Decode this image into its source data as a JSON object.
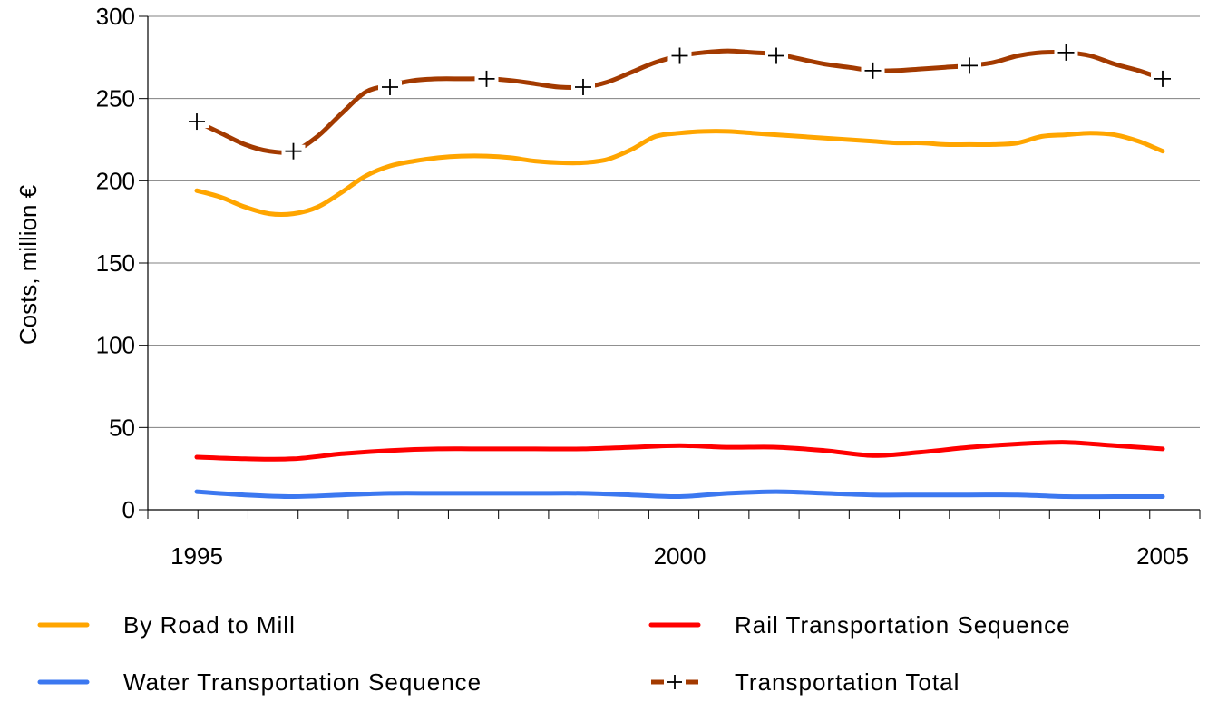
{
  "chart_data": {
    "type": "line",
    "ylabel": "Costs, million €",
    "xlabel": "",
    "ylim": [
      0,
      300
    ],
    "xlim": [
      1995,
      2005
    ],
    "yticks": [
      0,
      50,
      100,
      150,
      200,
      250,
      300
    ],
    "xtick_labels": [
      "1995",
      "2000",
      "2005"
    ],
    "grid": "horizontal",
    "legend_position": "bottom",
    "series": [
      {
        "name": "By Road to Mill",
        "color": "#ffa500",
        "marker": "none",
        "x": [
          1995,
          1995.25,
          1995.5,
          1995.75,
          1996,
          1996.25,
          1996.5,
          1996.75,
          1997,
          1997.25,
          1997.5,
          1997.75,
          1998,
          1998.25,
          1998.5,
          1998.75,
          1999,
          1999.25,
          1999.5,
          1999.75,
          2000,
          2000.25,
          2000.5,
          2000.75,
          2001,
          2001.25,
          2001.5,
          2001.75,
          2002,
          2002.25,
          2002.5,
          2002.75,
          2003,
          2003.25,
          2003.5,
          2003.75,
          2004,
          2004.25,
          2004.5,
          2004.75,
          2005
        ],
        "values": [
          194,
          190,
          184,
          180,
          180,
          184,
          193,
          203,
          209,
          212,
          214,
          215,
          215,
          214,
          212,
          211,
          211,
          213,
          219,
          227,
          229,
          230,
          230,
          229,
          228,
          227,
          226,
          225,
          224,
          223,
          223,
          222,
          222,
          222,
          223,
          227,
          228,
          229,
          228,
          224,
          218
        ]
      },
      {
        "name": "Rail Transportation Sequence",
        "color": "#ff0000",
        "marker": "none",
        "x": [
          1995,
          1995.5,
          1996,
          1996.5,
          1997,
          1997.5,
          1998,
          1998.5,
          1999,
          1999.5,
          2000,
          2000.5,
          2001,
          2001.5,
          2002,
          2002.5,
          2003,
          2003.5,
          2004,
          2004.5,
          2005
        ],
        "values": [
          32,
          31,
          31,
          34,
          36,
          37,
          37,
          37,
          37,
          38,
          39,
          38,
          38,
          36,
          33,
          35,
          38,
          40,
          41,
          39,
          37
        ]
      },
      {
        "name": "Water Transportation Sequence",
        "color": "#3c78f0",
        "marker": "none",
        "x": [
          1995,
          1995.5,
          1996,
          1996.5,
          1997,
          1997.5,
          1998,
          1998.5,
          1999,
          1999.5,
          2000,
          2000.5,
          2001,
          2001.5,
          2002,
          2002.5,
          2003,
          2003.5,
          2004,
          2004.5,
          2005
        ],
        "values": [
          11,
          9,
          8,
          9,
          10,
          10,
          10,
          10,
          10,
          9,
          8,
          10,
          11,
          10,
          9,
          9,
          9,
          9,
          8,
          8,
          8
        ]
      },
      {
        "name": "Transportation Total",
        "color": "#a33a00",
        "marker": "plus",
        "x": [
          1995,
          1995.25,
          1995.5,
          1995.75,
          1996,
          1996.25,
          1996.5,
          1996.75,
          1997,
          1997.25,
          1997.5,
          1997.75,
          1998,
          1998.25,
          1998.5,
          1998.75,
          1999,
          1999.25,
          1999.5,
          1999.75,
          2000,
          2000.25,
          2000.5,
          2000.75,
          2001,
          2001.25,
          2001.5,
          2001.75,
          2002,
          2002.25,
          2002.5,
          2002.75,
          2003,
          2003.25,
          2003.5,
          2003.75,
          2004,
          2004.25,
          2004.5,
          2004.75,
          2005
        ],
        "values": [
          236,
          229,
          222,
          218,
          218,
          227,
          241,
          254,
          258,
          261,
          262,
          262,
          262,
          261,
          259,
          257,
          257,
          260,
          266,
          272,
          276,
          278,
          279,
          278,
          277,
          274,
          271,
          269,
          267,
          267,
          268,
          269,
          270,
          272,
          276,
          278,
          278,
          276,
          271,
          267,
          262
        ],
        "marker_x": [
          1995,
          1996,
          1997,
          1998,
          1999,
          2000,
          2001,
          2002,
          2003,
          2004,
          2005
        ],
        "marker_values": [
          236,
          218,
          257,
          262,
          257,
          276,
          276,
          267,
          270,
          278,
          262
        ]
      }
    ]
  }
}
